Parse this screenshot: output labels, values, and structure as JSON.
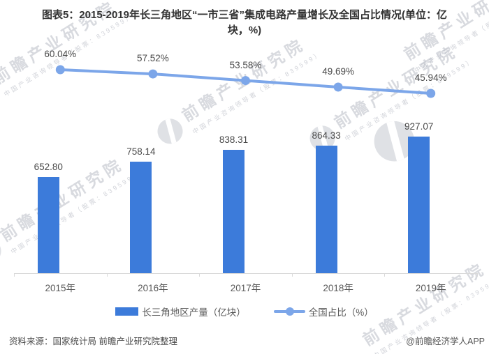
{
  "header": {
    "line1": "图表5：2015-2019年长三角地区“一市三省”集成电路产量增长及全国占比情况(单位：亿",
    "line2": "块，%)"
  },
  "chart_data": {
    "type": "combo-bar-line",
    "title": "图表5：2015-2019年长三角地区“一市三省”集成电路产量增长及全国占比情况(单位：亿块，%)",
    "categories": [
      "2015年",
      "2016年",
      "2017年",
      "2018年",
      "2019年"
    ],
    "series": [
      {
        "name": "长三角地区产量（亿块）",
        "type": "bar",
        "unit": "亿块",
        "values": [
          652.8,
          758.14,
          838.31,
          864.33,
          927.07
        ],
        "labels": [
          "652.80",
          "758.14",
          "838.31",
          "864.33",
          "927.07"
        ],
        "color": "#3C7BDA"
      },
      {
        "name": "全国占比（%）",
        "type": "line",
        "unit": "%",
        "values": [
          60.04,
          57.52,
          53.58,
          49.69,
          45.94
        ],
        "labels": [
          "60.04%",
          "57.52%",
          "53.58%",
          "49.69%",
          "45.94%"
        ],
        "color": "#7CA6E9"
      }
    ],
    "legend_position": "bottom",
    "grid": false,
    "value_axes_visible": false
  },
  "legend": {
    "items": [
      {
        "label": "长三角地区产量（亿块）",
        "marker": "bar-swatch",
        "color": "#3C7BDA"
      },
      {
        "label": "全国占比（%）",
        "marker": "line-dot-swatch",
        "color": "#7CA6E9"
      }
    ]
  },
  "footer": {
    "source": "资料来源：国家统计局 前瞻产业研究院整理",
    "credit": "@前瞻经济学人APP"
  },
  "watermark": {
    "text": "前瞻产业研究院",
    "subtext": "中国产业咨询领导者（股票：839599）"
  },
  "colors": {
    "bar": "#3C7BDA",
    "line": "#7CA6E9",
    "title_text": "#333333",
    "axis_line": "#d9d9d9",
    "label_text": "#4a4a4a",
    "axis_text": "#595959"
  }
}
